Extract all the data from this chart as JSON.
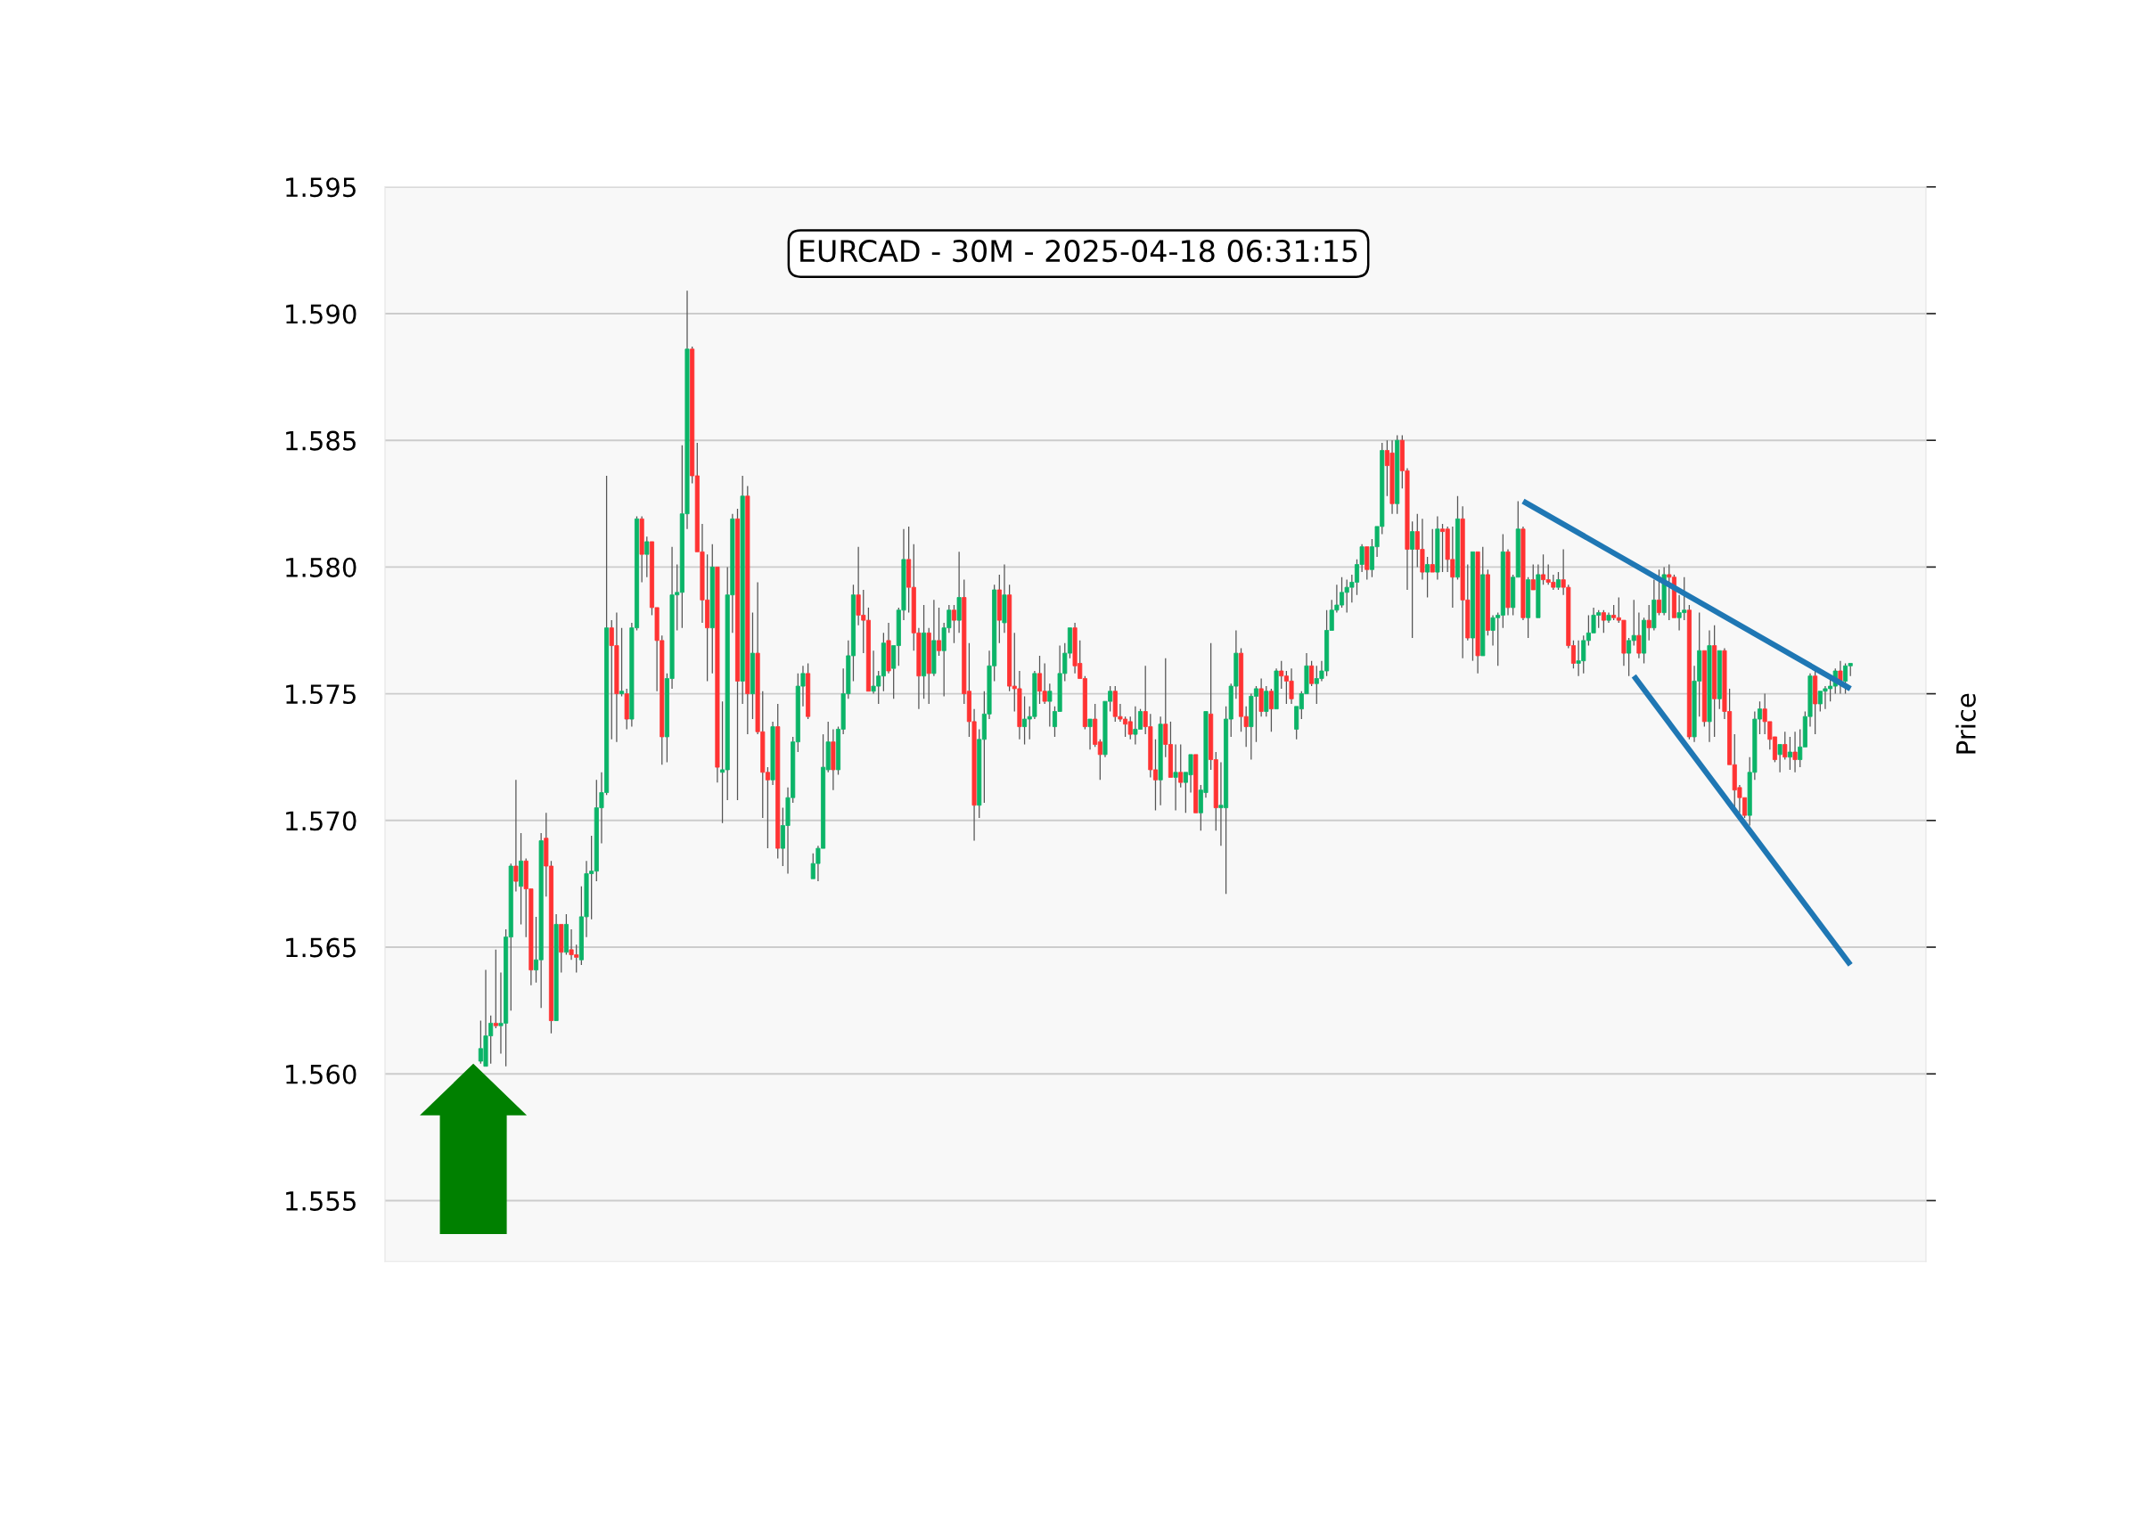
{
  "chart_data": {
    "type": "candlestick",
    "title": "EURCAD - 30M - 2025-04-18 06:31:15",
    "ylabel": "Price",
    "ylim": [
      1.5526,
      1.595
    ],
    "yticks": [
      1.555,
      {
        "value": 1.56,
        "label": "1.560"
      },
      1.565,
      {
        "value": 1.57,
        "label": "1.570"
      },
      1.575,
      {
        "value": 1.58,
        "label": "1.580"
      },
      1.585,
      {
        "value": 1.59,
        "label": "1.590"
      },
      1.595
    ],
    "grid": "y",
    "categories": [
      null,
      null,
      null,
      null,
      null,
      null,
      null,
      null,
      null,
      null,
      null,
      null,
      null,
      null,
      null,
      null,
      null,
      null,
      null,
      null,
      null,
      null,
      null,
      null,
      null,
      null,
      null,
      null,
      null,
      null,
      null,
      null,
      null,
      null,
      null,
      null,
      null,
      null,
      null,
      null,
      null,
      null,
      null,
      null,
      null,
      null,
      null,
      null,
      null,
      null,
      null,
      null,
      null,
      null,
      null,
      null,
      null,
      null,
      null,
      null,
      null,
      null,
      null,
      null,
      null,
      null,
      null,
      null,
      null,
      null,
      null,
      null,
      null,
      null,
      null,
      null,
      null,
      null,
      null,
      null,
      null,
      null,
      null,
      null,
      null,
      null,
      null,
      null,
      null,
      null,
      null,
      null,
      null,
      null,
      null,
      null,
      null,
      null,
      null,
      null,
      null,
      null,
      null,
      null,
      null,
      null,
      null,
      null,
      null,
      null,
      null,
      null,
      null,
      null,
      null,
      null,
      null,
      null,
      null,
      null,
      null,
      null,
      null,
      null,
      null,
      null,
      null,
      null,
      null,
      null,
      null,
      null,
      null,
      null,
      null,
      null,
      null,
      null,
      null,
      null,
      null,
      null,
      null,
      null,
      null,
      null,
      null,
      null,
      null,
      null,
      null,
      null,
      null,
      null,
      null,
      null,
      null,
      null,
      null,
      null,
      null,
      null,
      null,
      null,
      null,
      null,
      null,
      null,
      null,
      null,
      null,
      null,
      null,
      null,
      null,
      null,
      null,
      null,
      null,
      null,
      null,
      null,
      null,
      null,
      null,
      null,
      null,
      null,
      null,
      null,
      null,
      null,
      null,
      null,
      null,
      null,
      null,
      null,
      null,
      null,
      null,
      null,
      null,
      null,
      null,
      null,
      null,
      null,
      null,
      null,
      null,
      null,
      null,
      null,
      null,
      null,
      null,
      null,
      null,
      null,
      null,
      null,
      null,
      null,
      null,
      null,
      null,
      null,
      null,
      null,
      null,
      null,
      null,
      null,
      null,
      null,
      null,
      null,
      null,
      null,
      null,
      null,
      null,
      null,
      null,
      null,
      null,
      null,
      null,
      null,
      null,
      null,
      null,
      null,
      null,
      null,
      null,
      null,
      null,
      null,
      null,
      null,
      null,
      null,
      null,
      null,
      null,
      null,
      null,
      null,
      null,
      null,
      null
    ],
    "ohlc": [
      [
        1.5605,
        1.5621,
        1.5604,
        1.561
      ],
      [
        1.5603,
        1.5641,
        1.5603,
        1.5615
      ],
      [
        1.5615,
        1.5623,
        1.5604,
        1.562
      ],
      [
        1.562,
        1.5649,
        1.5618,
        1.5619
      ],
      [
        1.5619,
        1.564,
        1.5608,
        1.562
      ],
      [
        1.562,
        1.5657,
        1.5603,
        1.5654
      ],
      [
        1.5654,
        1.5683,
        1.5625,
        1.5682
      ],
      [
        1.5682,
        1.5716,
        1.5672,
        1.5676
      ],
      [
        1.5674,
        1.5695,
        1.5659,
        1.5684
      ],
      [
        1.5684,
        1.5685,
        1.5654,
        1.5673
      ],
      [
        1.5673,
        1.5673,
        1.5635,
        1.5641
      ],
      [
        1.5641,
        1.5662,
        1.5636,
        1.5645
      ],
      [
        1.5645,
        1.5695,
        1.5626,
        1.5692
      ],
      [
        1.5693,
        1.5703,
        1.567,
        1.5682
      ],
      [
        1.5682,
        1.5684,
        1.5616,
        1.5621
      ],
      [
        1.5621,
        1.5663,
        1.5621,
        1.5659
      ],
      [
        1.5659,
        1.5659,
        1.564,
        1.5648
      ],
      [
        1.5648,
        1.5663,
        1.5647,
        1.5659
      ],
      [
        1.5649,
        1.5657,
        1.5645,
        1.5647
      ],
      [
        1.5647,
        1.5651,
        1.564,
        1.5646
      ],
      [
        1.5645,
        1.5674,
        1.5643,
        1.5662
      ],
      [
        1.5662,
        1.5684,
        1.5654,
        1.5679
      ],
      [
        1.5679,
        1.5694,
        1.5661,
        1.568
      ],
      [
        1.568,
        1.5716,
        1.5676,
        1.5705
      ],
      [
        1.5705,
        1.5719,
        1.5691,
        1.5711
      ],
      [
        1.5711,
        1.5836,
        1.571,
        1.5776
      ],
      [
        1.5776,
        1.5779,
        1.5732,
        1.5769
      ],
      [
        1.5769,
        1.5782,
        1.5731,
        1.575
      ],
      [
        1.575,
        1.5776,
        1.5749,
        1.5751
      ],
      [
        1.575,
        1.5752,
        1.5736,
        1.574
      ],
      [
        1.574,
        1.5778,
        1.5737,
        1.5776
      ],
      [
        1.5776,
        1.582,
        1.5775,
        1.5819
      ],
      [
        1.5819,
        1.582,
        1.5794,
        1.5805
      ],
      [
        1.5805,
        1.5812,
        1.5796,
        1.581
      ],
      [
        1.581,
        1.581,
        1.5781,
        1.5784
      ],
      [
        1.5784,
        1.5784,
        1.5751,
        1.5771
      ],
      [
        1.5771,
        1.5773,
        1.5722,
        1.5733
      ],
      [
        1.5733,
        1.5758,
        1.5723,
        1.5756
      ],
      [
        1.5756,
        1.5808,
        1.5752,
        1.5789
      ],
      [
        1.5789,
        1.5801,
        1.5775,
        1.579
      ],
      [
        1.579,
        1.5848,
        1.5776,
        1.5821
      ],
      [
        1.5821,
        1.5909,
        1.5815,
        1.5886
      ],
      [
        1.5886,
        1.5887,
        1.5833,
        1.5836
      ],
      [
        1.5836,
        1.5849,
        1.5806,
        1.5806
      ],
      [
        1.5806,
        1.5817,
        1.5778,
        1.5787
      ],
      [
        1.5787,
        1.5805,
        1.5755,
        1.5776
      ],
      [
        1.5776,
        1.5809,
        1.5758,
        1.58
      ],
      [
        1.58,
        1.58,
        1.5715,
        1.5721
      ],
      [
        1.5719,
        1.5747,
        1.5699,
        1.572
      ],
      [
        1.572,
        1.58,
        1.5708,
        1.5789
      ],
      [
        1.5789,
        1.5821,
        1.5774,
        1.5819
      ],
      [
        1.5819,
        1.5823,
        1.5708,
        1.5755
      ],
      [
        1.5755,
        1.5836,
        1.5746,
        1.5828
      ],
      [
        1.5828,
        1.5832,
        1.5734,
        1.575
      ],
      [
        1.575,
        1.5782,
        1.574,
        1.5766
      ],
      [
        1.5766,
        1.5794,
        1.5734,
        1.5735
      ],
      [
        1.5735,
        1.5751,
        1.5701,
        1.5719
      ],
      [
        1.5719,
        1.5721,
        1.5689,
        1.5716
      ],
      [
        1.5716,
        1.5739,
        1.5714,
        1.5737
      ],
      [
        1.5737,
        1.5746,
        1.5685,
        1.5689
      ],
      [
        1.5689,
        1.5705,
        1.5682,
        1.5698
      ],
      [
        1.5698,
        1.5713,
        1.5679,
        1.5709
      ],
      [
        1.5709,
        1.5733,
        1.5707,
        1.5731
      ],
      [
        1.5731,
        1.5758,
        1.5727,
        1.5753
      ],
      [
        1.5753,
        1.5761,
        1.5745,
        1.5758
      ],
      [
        1.5758,
        1.5762,
        1.574,
        1.5741
      ],
      [
        1.5677,
        1.5687,
        1.5677,
        1.5683
      ],
      [
        1.5683,
        1.569,
        1.5676,
        1.5689
      ],
      [
        1.5689,
        1.5734,
        1.5689,
        1.5721
      ],
      [
        1.572,
        1.5739,
        1.5719,
        1.5731
      ],
      [
        1.5731,
        1.5736,
        1.5712,
        1.572
      ],
      [
        1.572,
        1.5737,
        1.5718,
        1.5736
      ],
      [
        1.5736,
        1.576,
        1.5734,
        1.575
      ],
      [
        1.575,
        1.5771,
        1.5748,
        1.5765
      ],
      [
        1.5765,
        1.5793,
        1.5755,
        1.5789
      ],
      [
        1.5789,
        1.5808,
        1.5777,
        1.5781
      ],
      [
        1.5781,
        1.5791,
        1.5766,
        1.5779
      ],
      [
        1.5779,
        1.5784,
        1.5751,
        1.5751
      ],
      [
        1.5751,
        1.5767,
        1.575,
        1.5753
      ],
      [
        1.5753,
        1.5759,
        1.5746,
        1.5757
      ],
      [
        1.5757,
        1.5774,
        1.5751,
        1.577
      ],
      [
        1.5771,
        1.5778,
        1.5758,
        1.5759
      ],
      [
        1.576,
        1.5769,
        1.5748,
        1.5769
      ],
      [
        1.5769,
        1.5784,
        1.5761,
        1.5783
      ],
      [
        1.5783,
        1.5815,
        1.5779,
        1.5803
      ],
      [
        1.5803,
        1.5816,
        1.5782,
        1.5792
      ],
      [
        1.5792,
        1.5809,
        1.5767,
        1.5774
      ],
      [
        1.5774,
        1.5776,
        1.5744,
        1.5757
      ],
      [
        1.5757,
        1.5785,
        1.5748,
        1.5774
      ],
      [
        1.5774,
        1.5776,
        1.5746,
        1.5758
      ],
      [
        1.5758,
        1.5787,
        1.5757,
        1.5771
      ],
      [
        1.5771,
        1.5784,
        1.5765,
        1.5767
      ],
      [
        1.5767,
        1.5778,
        1.5749,
        1.5776
      ],
      [
        1.5776,
        1.5785,
        1.5774,
        1.5783
      ],
      [
        1.5783,
        1.5785,
        1.577,
        1.5779
      ],
      [
        1.5779,
        1.5806,
        1.5774,
        1.5788
      ],
      [
        1.5788,
        1.5795,
        1.5746,
        1.575
      ],
      [
        1.5751,
        1.577,
        1.5733,
        1.5739
      ],
      [
        1.5739,
        1.5744,
        1.5692,
        1.5706
      ],
      [
        1.5706,
        1.5736,
        1.5701,
        1.5732
      ],
      [
        1.5732,
        1.5751,
        1.5707,
        1.5742
      ],
      [
        1.5742,
        1.5767,
        1.574,
        1.5761
      ],
      [
        1.5761,
        1.5793,
        1.5755,
        1.5791
      ],
      [
        1.5791,
        1.5797,
        1.577,
        1.5779
      ],
      [
        1.5778,
        1.5801,
        1.5774,
        1.5789
      ],
      [
        1.5789,
        1.5793,
        1.5751,
        1.5753
      ],
      [
        1.5753,
        1.5774,
        1.5743,
        1.5752
      ],
      [
        1.5752,
        1.5759,
        1.5732,
        1.5737
      ],
      [
        1.5737,
        1.5749,
        1.573,
        1.574
      ],
      [
        1.574,
        1.5745,
        1.5732,
        1.5741
      ],
      [
        1.5741,
        1.5759,
        1.574,
        1.5758
      ],
      [
        1.5758,
        1.5765,
        1.5746,
        1.5751
      ],
      [
        1.5751,
        1.5762,
        1.5746,
        1.5747
      ],
      [
        1.5747,
        1.5754,
        1.5737,
        1.5751
      ],
      [
        1.5737,
        1.5745,
        1.5733,
        1.5743
      ],
      [
        1.5743,
        1.5769,
        1.5743,
        1.5758
      ],
      [
        1.5758,
        1.577,
        1.5755,
        1.5766
      ],
      [
        1.5766,
        1.5776,
        1.5764,
        1.5776
      ],
      [
        1.5776,
        1.5778,
        1.5758,
        1.5761
      ],
      [
        1.5762,
        1.5771,
        1.5756,
        1.5756
      ],
      [
        1.5756,
        1.5757,
        1.5736,
        1.5737
      ],
      [
        1.5737,
        1.574,
        1.5728,
        1.574
      ],
      [
        1.574,
        1.5746,
        1.5729,
        1.573
      ],
      [
        1.5731,
        1.5732,
        1.5716,
        1.5726
      ],
      [
        1.5726,
        1.5747,
        1.5725,
        1.5747
      ],
      [
        1.5747,
        1.5753,
        1.5743,
        1.5751
      ],
      [
        1.5751,
        1.5753,
        1.5739,
        1.5741
      ],
      [
        1.5741,
        1.5746,
        1.5739,
        1.574
      ],
      [
        1.574,
        1.5741,
        1.5733,
        1.5738
      ],
      [
        1.5739,
        1.5741,
        1.5732,
        1.5734
      ],
      [
        1.5734,
        1.5745,
        1.573,
        1.5736
      ],
      [
        1.5736,
        1.5744,
        1.5736,
        1.5743
      ],
      [
        1.5743,
        1.5761,
        1.5734,
        1.5737
      ],
      [
        1.5737,
        1.5742,
        1.5717,
        1.572
      ],
      [
        1.572,
        1.5732,
        1.5704,
        1.5716
      ],
      [
        1.5716,
        1.5741,
        1.5706,
        1.5738
      ],
      [
        1.5738,
        1.5764,
        1.5725,
        1.573
      ],
      [
        1.573,
        1.5739,
        1.5717,
        1.5717
      ],
      [
        1.5717,
        1.573,
        1.5704,
        1.5719
      ],
      [
        1.5719,
        1.573,
        1.5713,
        1.5715
      ],
      [
        1.5715,
        1.5719,
        1.5703,
        1.5719
      ],
      [
        1.5718,
        1.5726,
        1.5711,
        1.5726
      ],
      [
        1.5726,
        1.5726,
        1.5703,
        1.5703
      ],
      [
        1.5703,
        1.5714,
        1.5696,
        1.5712
      ],
      [
        1.5711,
        1.5743,
        1.5709,
        1.5743
      ],
      [
        1.5742,
        1.577,
        1.572,
        1.5724
      ],
      [
        1.5724,
        1.5727,
        1.5696,
        1.5705
      ],
      [
        1.5705,
        1.5723,
        1.569,
        1.5706
      ],
      [
        1.5705,
        1.5745,
        1.5671,
        1.574
      ],
      [
        1.574,
        1.5754,
        1.5733,
        1.5753
      ],
      [
        1.5753,
        1.5775,
        1.5748,
        1.5766
      ],
      [
        1.5766,
        1.5768,
        1.5735,
        1.5741
      ],
      [
        1.5741,
        1.5745,
        1.5729,
        1.5737
      ],
      [
        1.5737,
        1.575,
        1.5724,
        1.5749
      ],
      [
        1.5749,
        1.5753,
        1.5731,
        1.5752
      ],
      [
        1.5752,
        1.5756,
        1.5741,
        1.5743
      ],
      [
        1.5743,
        1.5753,
        1.5741,
        1.5751
      ],
      [
        1.5751,
        1.5752,
        1.5735,
        1.5744
      ],
      [
        1.5744,
        1.576,
        1.5744,
        1.5759
      ],
      [
        1.5759,
        1.5763,
        1.5752,
        1.5757
      ],
      [
        1.5757,
        1.5759,
        1.5746,
        1.5755
      ],
      [
        1.5755,
        1.576,
        1.5746,
        1.5748
      ],
      [
        1.5736,
        1.5745,
        1.5732,
        1.5745
      ],
      [
        1.5744,
        1.5751,
        1.574,
        1.575
      ],
      [
        1.575,
        1.5766,
        1.575,
        1.5761
      ],
      [
        1.5761,
        1.5763,
        1.5753,
        1.5754
      ],
      [
        1.5754,
        1.5761,
        1.5746,
        1.5756
      ],
      [
        1.5756,
        1.5763,
        1.5755,
        1.5759
      ],
      [
        1.5759,
        1.5783,
        1.5757,
        1.5775
      ],
      [
        1.5775,
        1.5787,
        1.5775,
        1.5783
      ],
      [
        1.5783,
        1.5793,
        1.5782,
        1.5785
      ],
      [
        1.5785,
        1.5796,
        1.5784,
        1.579
      ],
      [
        1.579,
        1.5795,
        1.5782,
        1.5792
      ],
      [
        1.5792,
        1.5797,
        1.5786,
        1.5794
      ],
      [
        1.5794,
        1.5803,
        1.5789,
        1.5801
      ],
      [
        1.5801,
        1.5809,
        1.5798,
        1.5808
      ],
      [
        1.5808,
        1.5808,
        1.5795,
        1.5799
      ],
      [
        1.5799,
        1.5811,
        1.5796,
        1.5808
      ],
      [
        1.5808,
        1.5816,
        1.5804,
        1.5816
      ],
      [
        1.5816,
        1.5849,
        1.5813,
        1.5846
      ],
      [
        1.5846,
        1.585,
        1.5828,
        1.584
      ],
      [
        1.5845,
        1.585,
        1.5821,
        1.5825
      ],
      [
        1.5825,
        1.5852,
        1.5821,
        1.585
      ],
      [
        1.585,
        1.5852,
        1.5831,
        1.5838
      ],
      [
        1.5838,
        1.5839,
        1.5791,
        1.5807
      ],
      [
        1.5807,
        1.5818,
        1.5772,
        1.5814
      ],
      [
        1.5814,
        1.5821,
        1.58,
        1.5807
      ],
      [
        1.5807,
        1.5819,
        1.5795,
        1.5798
      ],
      [
        1.5798,
        1.5804,
        1.5788,
        1.5801
      ],
      [
        1.5801,
        1.5815,
        1.5798,
        1.5798
      ],
      [
        1.5798,
        1.582,
        1.5795,
        1.5815
      ],
      [
        1.5815,
        1.5817,
        1.5798,
        1.5814
      ],
      [
        1.5815,
        1.5816,
        1.5798,
        1.5803
      ],
      [
        1.5803,
        1.5816,
        1.5784,
        1.5796
      ],
      [
        1.5796,
        1.5828,
        1.5795,
        1.5819
      ],
      [
        1.5819,
        1.5824,
        1.5764,
        1.5787
      ],
      [
        1.5787,
        1.5801,
        1.5771,
        1.5772
      ],
      [
        1.5772,
        1.5806,
        1.5763,
        1.5806
      ],
      [
        1.5806,
        1.5806,
        1.5758,
        1.5765
      ],
      [
        1.5765,
        1.5808,
        1.5765,
        1.5797
      ],
      [
        1.5797,
        1.5799,
        1.5773,
        1.5775
      ],
      [
        1.5775,
        1.5781,
        1.5769,
        1.578
      ],
      [
        1.578,
        1.5782,
        1.5761,
        1.5781
      ],
      [
        1.5781,
        1.5813,
        1.5776,
        1.5806
      ],
      [
        1.5806,
        1.5807,
        1.5781,
        1.5784
      ],
      [
        1.5784,
        1.5797,
        1.5781,
        1.5796
      ],
      [
        1.5796,
        1.5826,
        1.5796,
        1.5815
      ],
      [
        1.5815,
        1.5816,
        1.5779,
        1.578
      ],
      [
        1.578,
        1.5796,
        1.5772,
        1.5795
      ],
      [
        1.5795,
        1.5801,
        1.5791,
        1.5791
      ],
      [
        1.578,
        1.5801,
        1.578,
        1.5797
      ],
      [
        1.5797,
        1.5805,
        1.5793,
        1.5795
      ],
      [
        1.5795,
        1.5801,
        1.5793,
        1.5794
      ],
      [
        1.5794,
        1.5797,
        1.5791,
        1.5792
      ],
      [
        1.5792,
        1.5798,
        1.5791,
        1.5795
      ],
      [
        1.5795,
        1.5807,
        1.5789,
        1.5792
      ],
      [
        1.5792,
        1.5793,
        1.5768,
        1.5769
      ],
      [
        1.5769,
        1.5771,
        1.576,
        1.5762
      ],
      [
        1.5762,
        1.5771,
        1.5757,
        1.5763
      ],
      [
        1.5763,
        1.5773,
        1.5758,
        1.5771
      ],
      [
        1.5771,
        1.5781,
        1.5769,
        1.5774
      ],
      [
        1.5774,
        1.5784,
        1.5774,
        1.5781
      ],
      [
        1.5781,
        1.5783,
        1.5776,
        1.5782
      ],
      [
        1.5782,
        1.5783,
        1.5774,
        1.5779
      ],
      [
        1.5779,
        1.5782,
        1.5778,
        1.5781
      ],
      [
        1.5781,
        1.5785,
        1.5779,
        1.578
      ],
      [
        1.578,
        1.5788,
        1.5778,
        1.5779
      ],
      [
        1.5779,
        1.5779,
        1.5761,
        1.5766
      ],
      [
        1.5766,
        1.5772,
        1.5757,
        1.5771
      ],
      [
        1.5771,
        1.5787,
        1.5769,
        1.5773
      ],
      [
        1.5773,
        1.5782,
        1.5764,
        1.5766
      ],
      [
        1.5766,
        1.578,
        1.5762,
        1.5779
      ],
      [
        1.5779,
        1.5785,
        1.5771,
        1.5776
      ],
      [
        1.5776,
        1.5795,
        1.5775,
        1.5787
      ],
      [
        1.5787,
        1.5799,
        1.5781,
        1.5782
      ],
      [
        1.5782,
        1.58,
        1.5781,
        1.5797
      ],
      [
        1.5797,
        1.5801,
        1.5779,
        1.5796
      ],
      [
        1.5796,
        1.5797,
        1.578,
        1.578
      ],
      [
        1.578,
        1.5789,
        1.5775,
        1.5782
      ],
      [
        1.5782,
        1.5796,
        1.5779,
        1.5783
      ],
      [
        1.5783,
        1.5785,
        1.5732,
        1.5733
      ],
      [
        1.5733,
        1.5761,
        1.5731,
        1.5755
      ],
      [
        1.5755,
        1.5782,
        1.5741,
        1.5767
      ],
      [
        1.5767,
        1.5767,
        1.5737,
        1.5739
      ],
      [
        1.5739,
        1.5775,
        1.5731,
        1.5769
      ],
      [
        1.5769,
        1.5777,
        1.5733,
        1.5748
      ],
      [
        1.5748,
        1.5767,
        1.5744,
        1.5767
      ],
      [
        1.5767,
        1.5768,
        1.574,
        1.5743
      ],
      [
        1.5743,
        1.5752,
        1.5722,
        1.5722
      ],
      [
        1.5722,
        1.5734,
        1.5705,
        1.5712
      ],
      [
        1.5713,
        1.5714,
        1.5703,
        1.5709
      ],
      [
        1.5709,
        1.5709,
        1.5701,
        1.5702
      ],
      [
        1.5702,
        1.5725,
        1.5698,
        1.5719
      ],
      [
        1.5719,
        1.5743,
        1.5716,
        1.574
      ],
      [
        1.574,
        1.5747,
        1.5734,
        1.5744
      ],
      [
        1.5744,
        1.575,
        1.5734,
        1.5739
      ],
      [
        1.5739,
        1.5739,
        1.5728,
        1.5732
      ],
      [
        1.5733,
        1.5733,
        1.5723,
        1.5724
      ],
      [
        1.5726,
        1.573,
        1.5719,
        1.573
      ],
      [
        1.573,
        1.5735,
        1.5724,
        1.5725
      ],
      [
        1.5725,
        1.5733,
        1.572,
        1.5727
      ],
      [
        1.5727,
        1.5735,
        1.5719,
        1.5724
      ],
      [
        1.5724,
        1.5736,
        1.5721,
        1.5729
      ],
      [
        1.5729,
        1.5743,
        1.5729,
        1.5741
      ],
      [
        1.5741,
        1.5758,
        1.5737,
        1.5757
      ],
      [
        1.5757,
        1.5759,
        1.5734,
        1.5746
      ],
      [
        1.5746,
        1.5751,
        1.5743,
        1.5751
      ],
      [
        1.5751,
        1.5753,
        1.5744,
        1.5752
      ],
      [
        1.5752,
        1.5756,
        1.5747,
        1.5753
      ],
      [
        1.5753,
        1.576,
        1.575,
        1.5759
      ],
      [
        1.5759,
        1.5763,
        1.575,
        1.5755
      ],
      [
        1.5755,
        1.5762,
        1.575,
        1.5761
      ],
      [
        1.5761,
        1.5762,
        1.5757,
        1.5762
      ]
    ],
    "series": [
      {
        "type": "line",
        "color": "#1f77b4",
        "values": [
          null,
          null,
          null,
          null,
          null,
          null,
          null,
          null,
          null,
          null,
          null,
          null,
          null,
          null,
          null,
          null,
          null,
          null,
          null,
          null,
          null,
          null,
          null,
          null,
          null,
          null,
          null,
          null,
          null,
          null,
          null,
          null,
          null,
          null,
          null,
          null,
          null,
          null,
          null,
          null,
          null,
          null,
          null,
          null,
          null,
          null,
          null,
          null,
          null,
          null,
          null,
          null,
          null,
          null,
          null,
          null,
          null,
          null,
          null,
          null,
          null,
          null,
          null,
          null,
          null,
          null,
          null,
          null,
          null,
          null,
          null,
          null,
          null,
          null,
          null,
          null,
          null,
          null,
          null,
          null,
          null,
          null,
          null,
          null,
          null,
          null,
          null,
          null,
          null,
          null,
          null,
          null,
          null,
          null,
          null,
          null,
          null,
          null,
          null,
          null,
          null,
          null,
          null,
          null,
          null,
          null,
          null,
          null,
          null,
          null,
          null,
          null,
          null,
          null,
          null,
          null,
          null,
          null,
          null,
          null,
          null,
          null,
          null,
          null,
          null,
          null,
          null,
          null,
          null,
          null,
          null,
          null,
          null,
          null,
          null,
          null,
          null,
          null,
          null,
          null,
          null,
          null,
          null,
          null,
          null,
          null,
          null,
          null,
          null,
          null,
          null,
          null,
          null,
          null,
          null,
          null,
          null,
          null,
          null,
          null,
          null,
          null,
          null,
          null,
          null,
          null,
          null,
          null,
          null,
          null,
          null,
          null,
          null,
          null,
          null,
          null,
          null,
          null,
          null,
          null,
          null,
          null,
          null,
          null,
          null,
          null,
          null,
          null,
          null,
          null,
          null,
          null,
          null,
          null,
          null,
          null,
          null,
          null,
          null,
          null,
          null,
          null,
          null,
          null,
          null,
          null,
          null,
          1.5826,
          null,
          null,
          null,
          null,
          null,
          null,
          null,
          null,
          null,
          null,
          null,
          null,
          null,
          null,
          null,
          null,
          null,
          null,
          null,
          null,
          null,
          null,
          null,
          null,
          null,
          null,
          null,
          null,
          null,
          null,
          null,
          null,
          null,
          null,
          null,
          null,
          null,
          null,
          null,
          null,
          null,
          null,
          null,
          null,
          null,
          null,
          null,
          null,
          null,
          null,
          null,
          null,
          null,
          null,
          null,
          null,
          null,
          null,
          null,
          null,
          null,
          null,
          null,
          null,
          1.5752
        ]
      },
      {
        "type": "line",
        "color": "#1f77b4",
        "values": [
          null,
          null,
          null,
          null,
          null,
          null,
          null,
          null,
          null,
          null,
          null,
          null,
          null,
          null,
          null,
          null,
          null,
          null,
          null,
          null,
          null,
          null,
          null,
          null,
          null,
          null,
          null,
          null,
          null,
          null,
          null,
          null,
          null,
          null,
          null,
          null,
          null,
          null,
          null,
          null,
          null,
          null,
          null,
          null,
          null,
          null,
          null,
          null,
          null,
          null,
          null,
          null,
          null,
          null,
          null,
          null,
          null,
          null,
          null,
          null,
          null,
          null,
          null,
          null,
          null,
          null,
          null,
          null,
          null,
          null,
          null,
          null,
          null,
          null,
          null,
          null,
          null,
          null,
          null,
          null,
          null,
          null,
          null,
          null,
          null,
          null,
          null,
          null,
          null,
          null,
          null,
          null,
          null,
          null,
          null,
          null,
          null,
          null,
          null,
          null,
          null,
          null,
          null,
          null,
          null,
          null,
          null,
          null,
          null,
          null,
          null,
          null,
          null,
          null,
          null,
          null,
          null,
          null,
          null,
          null,
          null,
          null,
          null,
          null,
          null,
          null,
          null,
          null,
          null,
          null,
          null,
          null,
          null,
          null,
          null,
          null,
          null,
          null,
          null,
          null,
          null,
          null,
          null,
          null,
          null,
          null,
          null,
          null,
          null,
          null,
          null,
          null,
          null,
          null,
          null,
          null,
          null,
          null,
          null,
          null,
          null,
          null,
          null,
          null,
          null,
          null,
          null,
          null,
          null,
          null,
          null,
          null,
          null,
          null,
          null,
          null,
          null,
          null,
          null,
          null,
          null,
          null,
          null,
          null,
          null,
          null,
          null,
          null,
          null,
          null,
          null,
          null,
          null,
          null,
          null,
          null,
          null,
          null,
          null,
          null,
          null,
          null,
          null,
          null,
          null,
          null,
          null,
          null,
          null,
          null,
          null,
          null,
          null,
          null,
          null,
          null,
          null,
          null,
          null,
          null,
          null,
          null,
          null,
          null,
          null,
          null,
          null,
          null,
          null,
          1.5757,
          null,
          null,
          null,
          null,
          null,
          null,
          null,
          null,
          null,
          null,
          null,
          null,
          null,
          null,
          null,
          null,
          null,
          null,
          null,
          null,
          null,
          null,
          null,
          null,
          null,
          null,
          null,
          null,
          null,
          null,
          null,
          null,
          null,
          null,
          null,
          null,
          null,
          null,
          null,
          null,
          null,
          null,
          1.5643
        ]
      }
    ]
  }
}
